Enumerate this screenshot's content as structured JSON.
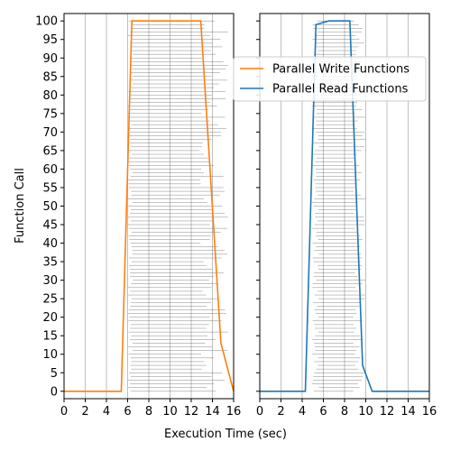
{
  "chart_data": {
    "type": "line",
    "ylabel": "Function Call",
    "xlabel": "Execution Time (sec)",
    "xlim": [
      0,
      16
    ],
    "ylim": [
      -2,
      102
    ],
    "xticks": [
      0,
      2,
      4,
      6,
      8,
      10,
      12,
      14,
      16
    ],
    "yticks": [
      0,
      5,
      10,
      15,
      20,
      25,
      30,
      35,
      40,
      45,
      50,
      55,
      60,
      65,
      70,
      75,
      80,
      85,
      90,
      95,
      100
    ],
    "grid": "vertical",
    "legend": {
      "placement": "upper-right",
      "entries": [
        {
          "name": "Parallel Write Functions",
          "color": "#ff7f0e"
        },
        {
          "name": "Parallel Read Functions",
          "color": "#1f77b4"
        }
      ]
    },
    "panels": [
      {
        "series": [
          {
            "name": "Parallel Write Functions",
            "color": "#ff7f0e",
            "x": [
              0,
              5.4,
              6.4,
              12.9,
              14.8,
              16
            ],
            "y": [
              0,
              0,
              100,
              100,
              13,
              0
            ]
          }
        ],
        "spans": {
          "start": 6.0,
          "start_max": 6.5,
          "end_min": 12.8,
          "end_max": 15.5
        }
      },
      {
        "series": [
          {
            "name": "Parallel Read Functions",
            "color": "#1f77b4",
            "x": [
              0,
              4.3,
              5.3,
              6.5,
              8.5,
              9.7,
              10.6,
              16
            ],
            "y": [
              0,
              0,
              99,
              100,
              100,
              7,
              0,
              0
            ]
          }
        ],
        "spans": {
          "start": 4.9,
          "start_max": 5.6,
          "end_min": 8.8,
          "end_max": 10.0
        }
      }
    ]
  }
}
